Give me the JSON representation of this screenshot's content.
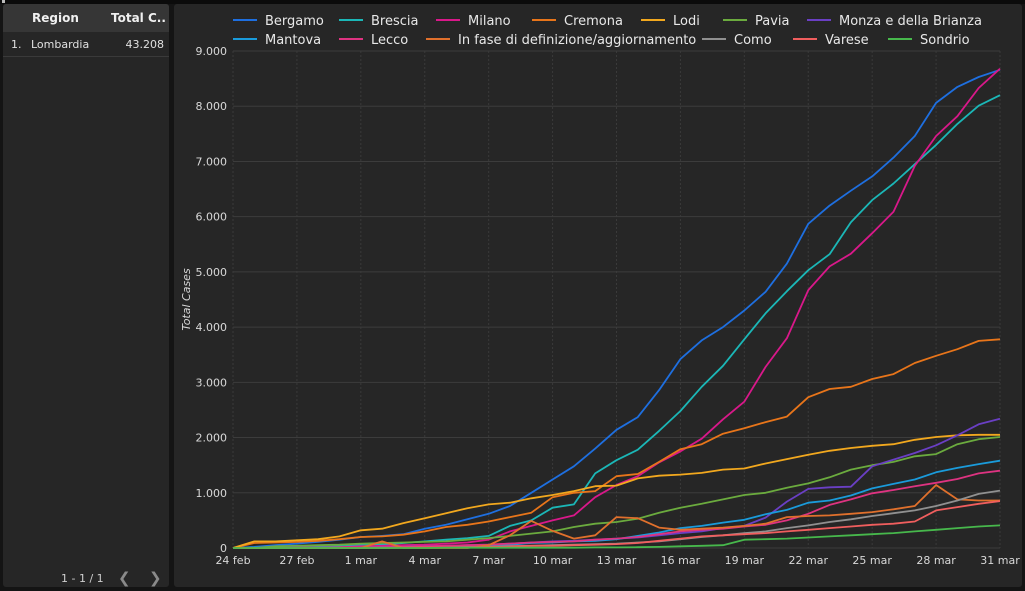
{
  "table": {
    "headers": {
      "region": "Region",
      "total": "Total C..."
    },
    "rows": [
      {
        "index": "1.",
        "region": "Lombardia",
        "total": "43.208"
      }
    ],
    "pagination": {
      "range": "1 - 1 / 1",
      "prev_icon": "chevron-left-icon",
      "next_icon": "chevron-right-icon"
    }
  },
  "chart_data": {
    "type": "line",
    "title": "",
    "xlabel": "",
    "ylabel": "Total Cases",
    "ylim": [
      0,
      9000
    ],
    "yticks": [
      0,
      1000,
      2000,
      3000,
      4000,
      5000,
      6000,
      7000,
      8000,
      9000
    ],
    "ytick_labels": [
      "0",
      "1.000",
      "2.000",
      "3.000",
      "4.000",
      "5.000",
      "6.000",
      "7.000",
      "8.000",
      "9.000"
    ],
    "x": [
      "24 feb",
      "25 feb",
      "26 feb",
      "27 feb",
      "28 feb",
      "29 feb",
      "1 mar",
      "2 mar",
      "3 mar",
      "4 mar",
      "5 mar",
      "6 mar",
      "7 mar",
      "8 mar",
      "9 mar",
      "10 mar",
      "11 mar",
      "12 mar",
      "13 mar",
      "14 mar",
      "15 mar",
      "16 mar",
      "17 mar",
      "18 mar",
      "19 mar",
      "20 mar",
      "21 mar",
      "22 mar",
      "23 mar",
      "24 mar",
      "25 mar",
      "26 mar",
      "27 mar",
      "28 mar",
      "29 mar",
      "30 mar",
      "31 mar"
    ],
    "xtick_labels": [
      "24 feb",
      "27 feb",
      "1 mar",
      "4 mar",
      "7 mar",
      "10 mar",
      "13 mar",
      "16 mar",
      "19 mar",
      "22 mar",
      "25 mar",
      "28 mar",
      "31 mar"
    ],
    "legend_position": "top",
    "series": [
      {
        "name": "Bergamo",
        "color": "#1e6fe0",
        "values": [
          0,
          20,
          50,
          80,
          110,
          150,
          200,
          220,
          250,
          350,
          420,
          520,
          620,
          760,
          1000,
          1240,
          1480,
          1800,
          2140,
          2370,
          2860,
          3420,
          3760,
          4000,
          4300,
          4640,
          5150,
          5870,
          6200,
          6470,
          6730,
          7070,
          7460,
          8060,
          8350,
          8530,
          8660
        ]
      },
      {
        "name": "Brescia",
        "color": "#1bb7b7",
        "values": [
          0,
          5,
          10,
          15,
          20,
          30,
          50,
          60,
          90,
          120,
          150,
          180,
          220,
          400,
          500,
          730,
          790,
          1350,
          1590,
          1780,
          2120,
          2480,
          2920,
          3300,
          3780,
          4250,
          4650,
          5030,
          5320,
          5900,
          6300,
          6600,
          6950,
          7300,
          7680,
          8010,
          8200
        ]
      },
      {
        "name": "Milano",
        "color": "#d9188a",
        "values": [
          0,
          0,
          5,
          5,
          10,
          15,
          30,
          40,
          50,
          60,
          80,
          100,
          150,
          300,
          400,
          500,
          590,
          920,
          1140,
          1300,
          1550,
          1750,
          1980,
          2330,
          2650,
          3280,
          3800,
          4670,
          5100,
          5330,
          5700,
          6090,
          6920,
          7460,
          7820,
          8330,
          8680
        ]
      },
      {
        "name": "Cremona",
        "color": "#e8751a",
        "values": [
          0,
          90,
          100,
          110,
          130,
          160,
          200,
          210,
          240,
          300,
          380,
          420,
          480,
          560,
          640,
          920,
          1000,
          1030,
          1300,
          1340,
          1560,
          1790,
          1880,
          2070,
          2170,
          2280,
          2380,
          2730,
          2880,
          2920,
          3060,
          3150,
          3350,
          3480,
          3600,
          3750,
          3780
        ]
      },
      {
        "name": "Lodi",
        "color": "#f2a81e",
        "values": [
          0,
          120,
          120,
          140,
          160,
          210,
          320,
          350,
          450,
          540,
          630,
          720,
          790,
          820,
          900,
          960,
          1030,
          1120,
          1130,
          1260,
          1310,
          1330,
          1360,
          1420,
          1440,
          1530,
          1610,
          1690,
          1760,
          1810,
          1850,
          1880,
          1960,
          2010,
          2040,
          2050,
          2050
        ]
      },
      {
        "name": "Pavia",
        "color": "#6bab3e",
        "values": [
          0,
          0,
          30,
          40,
          50,
          60,
          80,
          90,
          100,
          110,
          120,
          150,
          180,
          220,
          260,
          300,
          380,
          440,
          470,
          530,
          640,
          730,
          800,
          880,
          960,
          1000,
          1090,
          1170,
          1280,
          1420,
          1500,
          1560,
          1660,
          1700,
          1880,
          1970,
          2010
        ]
      },
      {
        "name": "Monza e della Brianza",
        "color": "#6a3fc4",
        "values": [
          0,
          0,
          0,
          5,
          5,
          10,
          10,
          15,
          20,
          30,
          40,
          50,
          60,
          80,
          100,
          120,
          130,
          150,
          170,
          190,
          230,
          270,
          300,
          360,
          400,
          550,
          840,
          1070,
          1100,
          1110,
          1480,
          1600,
          1720,
          1860,
          2040,
          2240,
          2340
        ]
      },
      {
        "name": "Mantova",
        "color": "#1a9bdb",
        "values": [
          0,
          0,
          0,
          5,
          5,
          10,
          10,
          15,
          20,
          30,
          30,
          40,
          50,
          60,
          90,
          100,
          120,
          130,
          160,
          220,
          280,
          360,
          400,
          460,
          510,
          610,
          690,
          820,
          860,
          950,
          1080,
          1160,
          1240,
          1370,
          1450,
          1520,
          1580
        ]
      },
      {
        "name": "Lecco",
        "color": "#de3381",
        "values": [
          0,
          0,
          0,
          5,
          5,
          10,
          10,
          15,
          20,
          30,
          40,
          50,
          60,
          80,
          100,
          110,
          120,
          150,
          170,
          200,
          250,
          300,
          330,
          350,
          390,
          420,
          500,
          620,
          780,
          880,
          990,
          1050,
          1120,
          1180,
          1250,
          1350,
          1400
        ]
      },
      {
        "name": "In fase di definizione/aggiornamento",
        "color": "#e0702c",
        "values": [
          0,
          0,
          0,
          0,
          0,
          0,
          0,
          120,
          0,
          0,
          0,
          0,
          50,
          230,
          490,
          310,
          170,
          230,
          560,
          540,
          370,
          330,
          350,
          370,
          400,
          440,
          560,
          580,
          590,
          620,
          650,
          700,
          760,
          1140,
          880,
          860,
          860
        ]
      },
      {
        "name": "Como",
        "color": "#909090",
        "values": [
          0,
          0,
          0,
          0,
          0,
          0,
          0,
          0,
          5,
          10,
          10,
          15,
          20,
          30,
          40,
          50,
          60,
          70,
          80,
          100,
          120,
          160,
          200,
          230,
          270,
          300,
          360,
          410,
          470,
          520,
          580,
          630,
          680,
          760,
          860,
          980,
          1040
        ]
      },
      {
        "name": "Varese",
        "color": "#f05e5e",
        "values": [
          0,
          0,
          0,
          0,
          0,
          0,
          0,
          0,
          5,
          10,
          10,
          15,
          20,
          30,
          40,
          40,
          50,
          60,
          70,
          90,
          130,
          170,
          210,
          230,
          250,
          270,
          300,
          330,
          360,
          390,
          420,
          440,
          480,
          680,
          740,
          800,
          850
        ]
      },
      {
        "name": "Sondrio",
        "color": "#47b84c",
        "values": [
          0,
          0,
          0,
          0,
          0,
          0,
          0,
          0,
          0,
          0,
          5,
          5,
          5,
          5,
          5,
          5,
          5,
          10,
          10,
          15,
          20,
          30,
          40,
          50,
          150,
          160,
          170,
          190,
          210,
          230,
          250,
          270,
          300,
          330,
          360,
          390,
          410
        ]
      }
    ]
  }
}
